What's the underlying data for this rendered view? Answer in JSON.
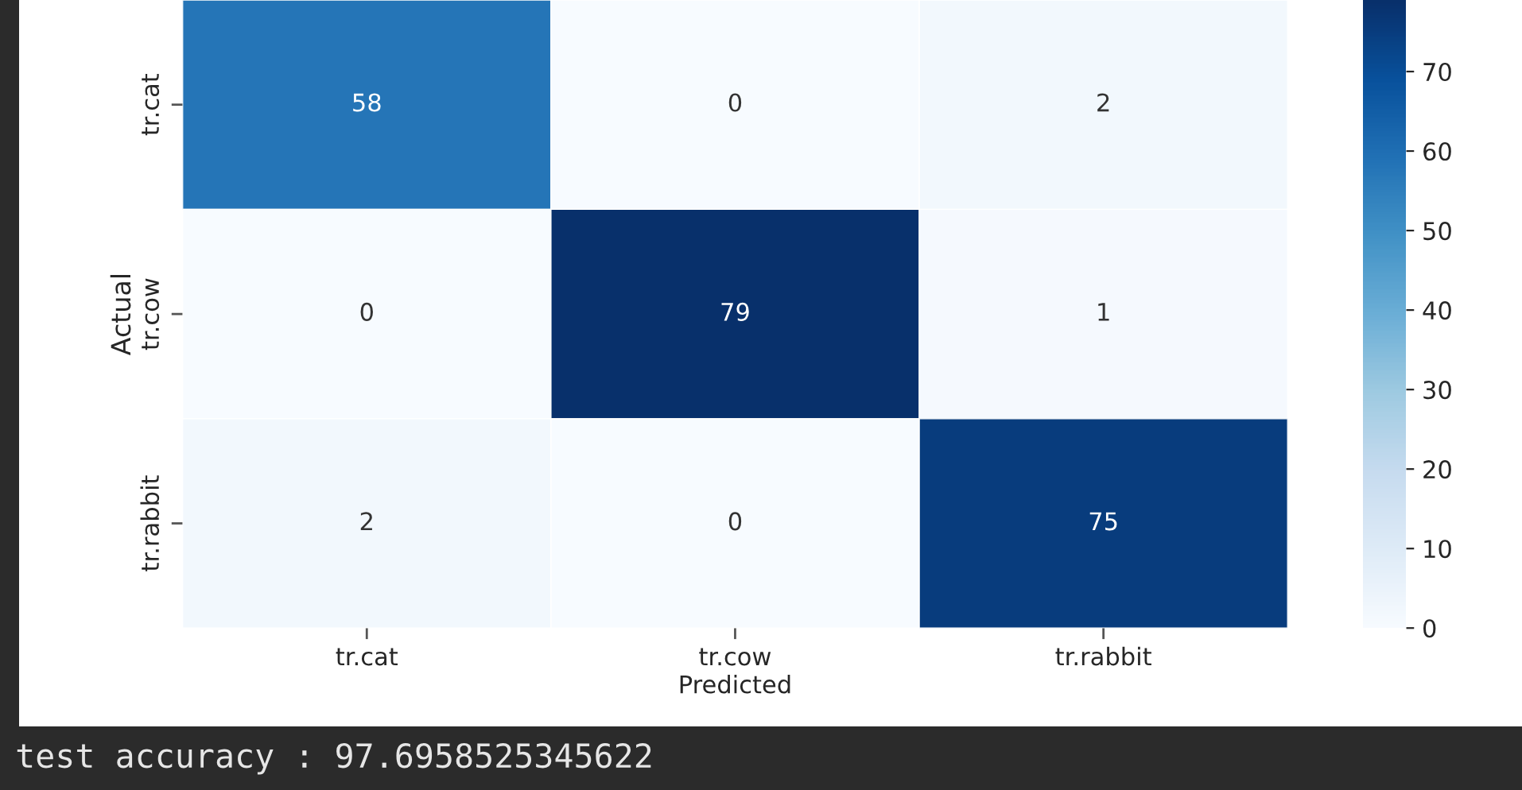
{
  "chart_data": {
    "type": "heatmap",
    "xlabel": "Predicted",
    "ylabel": "Actual",
    "categories": [
      "tr.cat",
      "tr.cow",
      "tr.rabbit"
    ],
    "y_categories": [
      "tr.cat",
      "tr.cow",
      "tr.rabbit"
    ],
    "cells": [
      [
        58,
        0,
        2
      ],
      [
        0,
        79,
        1
      ],
      [
        2,
        0,
        75
      ]
    ],
    "data_labels": true,
    "clim": [
      0,
      79
    ],
    "cticks": [
      0,
      10,
      20,
      30,
      40,
      50,
      60,
      70
    ],
    "annotations": [
      "test accuracy : 97.6958525345622"
    ]
  }
}
